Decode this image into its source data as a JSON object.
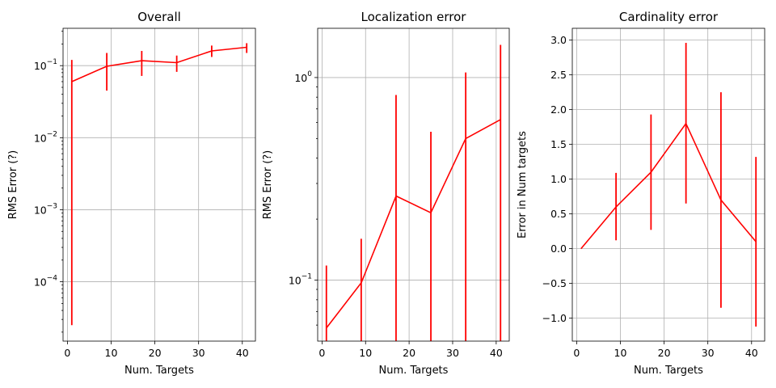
{
  "chart_data": [
    {
      "type": "line",
      "title": "Overall",
      "xlabel": "Num. Targets",
      "ylabel": "RMS Error (?)",
      "yscale": "log",
      "grid": true,
      "xlim": [
        -1,
        43
      ],
      "ylim": [
        1.5e-05,
        0.33
      ],
      "xticks": [
        0,
        10,
        20,
        30,
        40
      ],
      "yticks": [
        {
          "value": 0.0001,
          "base": "10",
          "exp": "−4"
        },
        {
          "value": 0.001,
          "base": "10",
          "exp": "−3"
        },
        {
          "value": 0.01,
          "base": "10",
          "exp": "−2"
        },
        {
          "value": 0.1,
          "base": "10",
          "exp": "−1"
        }
      ],
      "color": "#ff0000",
      "series": [
        {
          "x": [
            1,
            9,
            17,
            25,
            33,
            41
          ],
          "y": [
            0.06,
            0.098,
            0.117,
            0.11,
            0.16,
            0.18
          ],
          "yerr_low": [
            2.5e-05,
            0.045,
            0.072,
            0.082,
            0.132,
            0.15
          ],
          "yerr_high": [
            0.12,
            0.15,
            0.16,
            0.138,
            0.19,
            0.205
          ]
        }
      ]
    },
    {
      "type": "line",
      "title": "Localization error",
      "xlabel": "Num. Targets",
      "ylabel": "RMS Error (?)",
      "yscale": "log",
      "grid": true,
      "xlim": [
        -1,
        43
      ],
      "ylim": [
        0.05,
        1.75
      ],
      "xticks": [
        0,
        10,
        20,
        30,
        40
      ],
      "yticks": [
        {
          "value": 0.1,
          "base": "10",
          "exp": "−1"
        },
        {
          "value": 1,
          "base": "10",
          "exp": "0"
        }
      ],
      "color": "#ff0000",
      "series": [
        {
          "x": [
            1,
            9,
            17,
            25,
            33,
            41
          ],
          "y": [
            0.058,
            0.097,
            0.26,
            0.215,
            0.5,
            0.62
          ],
          "yerr_low": [
            0.05,
            0.05,
            0.05,
            0.05,
            0.05,
            0.05
          ],
          "yerr_high": [
            0.118,
            0.16,
            0.82,
            0.54,
            1.06,
            1.45
          ]
        }
      ]
    },
    {
      "type": "line",
      "title": "Cardinality error",
      "xlabel": "Num. Targets",
      "ylabel": "Error in Num targets",
      "yscale": "linear",
      "grid": true,
      "xlim": [
        -1,
        43
      ],
      "ylim": [
        -1.33,
        3.17
      ],
      "xticks": [
        0,
        10,
        20,
        30,
        40
      ],
      "yticks": [
        {
          "value": -1.0,
          "label": "−1.0"
        },
        {
          "value": -0.5,
          "label": "−0.5"
        },
        {
          "value": 0.0,
          "label": "0.0"
        },
        {
          "value": 0.5,
          "label": "0.5"
        },
        {
          "value": 1.0,
          "label": "1.0"
        },
        {
          "value": 1.5,
          "label": "1.5"
        },
        {
          "value": 2.0,
          "label": "2.0"
        },
        {
          "value": 2.5,
          "label": "2.5"
        },
        {
          "value": 3.0,
          "label": "3.0"
        }
      ],
      "color": "#ff0000",
      "series": [
        {
          "x": [
            1,
            9,
            17,
            25,
            33,
            41
          ],
          "y": [
            0.0,
            0.6,
            1.1,
            1.8,
            0.7,
            0.1
          ],
          "yerr_low": [
            0.0,
            0.12,
            0.27,
            0.65,
            -0.85,
            -1.12
          ],
          "yerr_high": [
            0.0,
            1.09,
            1.93,
            2.96,
            2.25,
            1.32
          ]
        }
      ]
    }
  ]
}
